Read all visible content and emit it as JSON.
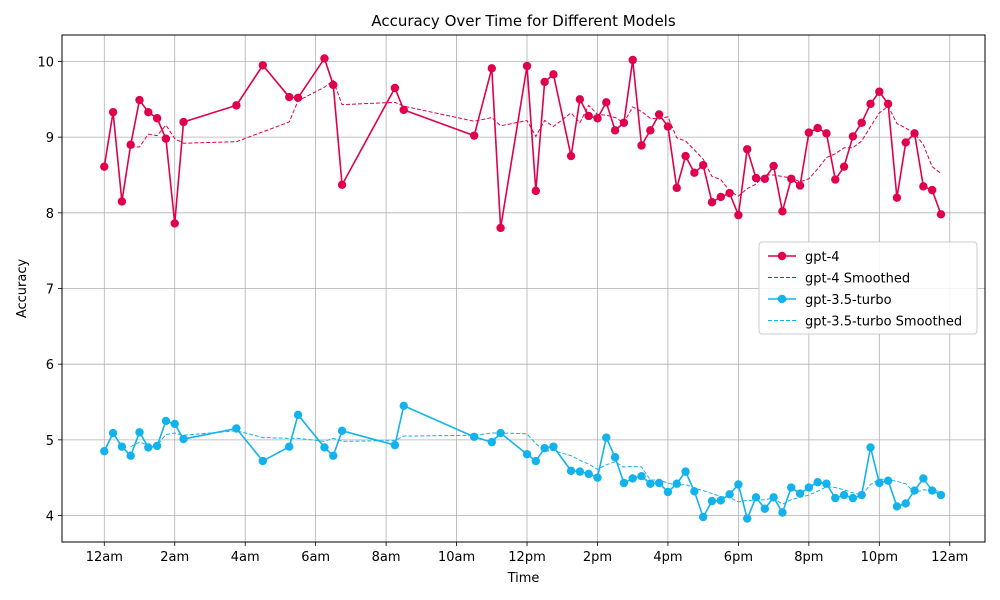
{
  "chart_data": {
    "type": "line",
    "title": "Accuracy Over Time for Different Models",
    "xlabel": "Time",
    "ylabel": "Accuracy",
    "x_unit": "hour of day (0-24)",
    "xlim": [
      -1.2,
      25.0
    ],
    "ylim": [
      3.65,
      10.35
    ],
    "x_ticks": [
      0,
      2,
      4,
      6,
      8,
      10,
      12,
      14,
      16,
      18,
      20,
      22,
      24
    ],
    "x_tick_labels": [
      "12am",
      "2am",
      "4am",
      "6am",
      "8am",
      "10am",
      "12pm",
      "2pm",
      "4pm",
      "6pm",
      "8pm",
      "10pm",
      "12am"
    ],
    "y_ticks": [
      4,
      5,
      6,
      7,
      8,
      9,
      10
    ],
    "y_tick_labels": [
      "4",
      "5",
      "6",
      "7",
      "8",
      "9",
      "10"
    ],
    "grid": true,
    "legend_position": "center-right",
    "x": [
      0,
      0.25,
      0.5,
      0.75,
      1,
      1.25,
      1.5,
      1.75,
      2,
      2.25,
      3.75,
      4.5,
      5.25,
      5.5,
      6.25,
      6.5,
      6.75,
      8.25,
      8.5,
      10.5,
      11,
      11.25,
      12,
      12.25,
      12.5,
      12.75,
      13.25,
      13.5,
      13.75,
      14,
      14.25,
      14.5,
      14.75,
      15,
      15.25,
      15.5,
      15.75,
      16,
      16.25,
      16.5,
      16.75,
      17,
      17.25,
      17.5,
      17.75,
      18,
      18.25,
      18.5,
      18.75,
      19,
      19.25,
      19.5,
      19.75,
      20,
      20.25,
      20.5,
      20.75,
      21,
      21.25,
      21.5,
      21.75,
      22,
      22.25,
      22.5,
      22.75,
      23,
      23.25,
      23.5,
      23.75
    ],
    "series": [
      {
        "name": "gpt-4",
        "style": "solid-markers",
        "color": "#e0004d",
        "values": [
          8.61,
          9.33,
          8.15,
          8.9,
          9.49,
          9.33,
          9.25,
          8.98,
          7.86,
          9.2,
          9.42,
          9.95,
          9.53,
          9.52,
          10.04,
          9.69,
          8.37,
          9.65,
          9.36,
          9.02,
          9.91,
          7.8,
          9.94,
          8.29,
          9.73,
          9.83,
          8.75,
          9.5,
          9.28,
          9.25,
          9.46,
          9.09,
          9.19,
          10.02,
          8.89,
          9.09,
          9.3,
          9.14,
          8.33,
          8.75,
          8.53,
          8.63,
          8.14,
          8.21,
          8.26,
          7.97,
          8.84,
          8.46,
          8.45,
          8.62,
          8.02,
          8.45,
          8.36,
          9.06,
          9.12,
          9.05,
          8.44,
          8.61,
          9.01,
          9.19,
          9.44,
          9.6,
          9.44,
          8.2,
          8.93,
          9.05,
          8.35,
          8.3,
          7.98
        ]
      },
      {
        "name": "gpt-4 Smoothed",
        "style": "dashed",
        "color": "#e0004d",
        "values": [
          null,
          null,
          null,
          8.87,
          8.87,
          9.04,
          9.02,
          9.16,
          8.98,
          8.92,
          8.94,
          9.07,
          9.2,
          9.48,
          9.66,
          9.75,
          9.43,
          9.46,
          9.41,
          9.21,
          9.26,
          9.15,
          9.22,
          9.01,
          9.22,
          9.14,
          9.32,
          9.19,
          9.42,
          9.3,
          9.29,
          9.26,
          9.19,
          9.4,
          9.34,
          9.25,
          9.24,
          9.27,
          8.99,
          8.95,
          8.83,
          8.71,
          8.48,
          8.44,
          8.29,
          8.22,
          8.32,
          8.38,
          8.5,
          8.5,
          8.48,
          8.46,
          8.41,
          8.45,
          8.58,
          8.73,
          8.78,
          8.86,
          8.86,
          8.95,
          9.14,
          9.32,
          9.41,
          9.18,
          9.12,
          9.05,
          8.9,
          8.61,
          8.52
        ]
      },
      {
        "name": "gpt-3.5-turbo",
        "style": "solid-markers",
        "color": "#12b3ec",
        "values": [
          4.85,
          5.09,
          4.91,
          4.79,
          5.1,
          4.9,
          4.92,
          5.25,
          5.21,
          5.01,
          5.15,
          4.72,
          4.91,
          5.33,
          4.9,
          4.79,
          5.12,
          4.93,
          5.45,
          5.04,
          4.97,
          5.09,
          4.81,
          4.72,
          4.89,
          4.91,
          4.59,
          4.58,
          4.55,
          4.5,
          5.03,
          4.77,
          4.43,
          4.49,
          4.52,
          4.42,
          4.43,
          4.31,
          4.42,
          4.58,
          4.32,
          3.98,
          4.19,
          4.2,
          4.28,
          4.41,
          3.96,
          4.24,
          4.09,
          4.24,
          4.04,
          4.37,
          4.29,
          4.37,
          4.44,
          4.42,
          4.23,
          4.27,
          4.23,
          4.27,
          4.9,
          4.43,
          4.46,
          4.12,
          4.16,
          4.33,
          4.49,
          4.33,
          4.27
        ]
      },
      {
        "name": "gpt-3.5-turbo Smoothed",
        "style": "dashed",
        "color": "#12b3ec",
        "values": [
          null,
          null,
          null,
          4.91,
          4.97,
          4.93,
          4.93,
          5.07,
          5.09,
          5.06,
          5.12,
          5.03,
          5.02,
          5.02,
          4.98,
          5.02,
          4.98,
          4.99,
          5.05,
          5.06,
          5.09,
          5.09,
          5.08,
          4.95,
          4.85,
          4.86,
          4.79,
          4.73,
          4.68,
          4.61,
          4.67,
          4.71,
          4.64,
          4.65,
          4.64,
          4.47,
          4.47,
          4.43,
          4.4,
          4.41,
          4.36,
          4.33,
          4.29,
          4.25,
          4.24,
          4.18,
          4.2,
          4.2,
          4.21,
          4.23,
          4.15,
          4.21,
          4.24,
          4.27,
          4.32,
          4.38,
          4.37,
          4.34,
          4.3,
          4.27,
          4.41,
          4.48,
          4.48,
          4.45,
          4.42,
          4.3,
          4.34,
          4.33,
          4.32
        ]
      }
    ]
  }
}
